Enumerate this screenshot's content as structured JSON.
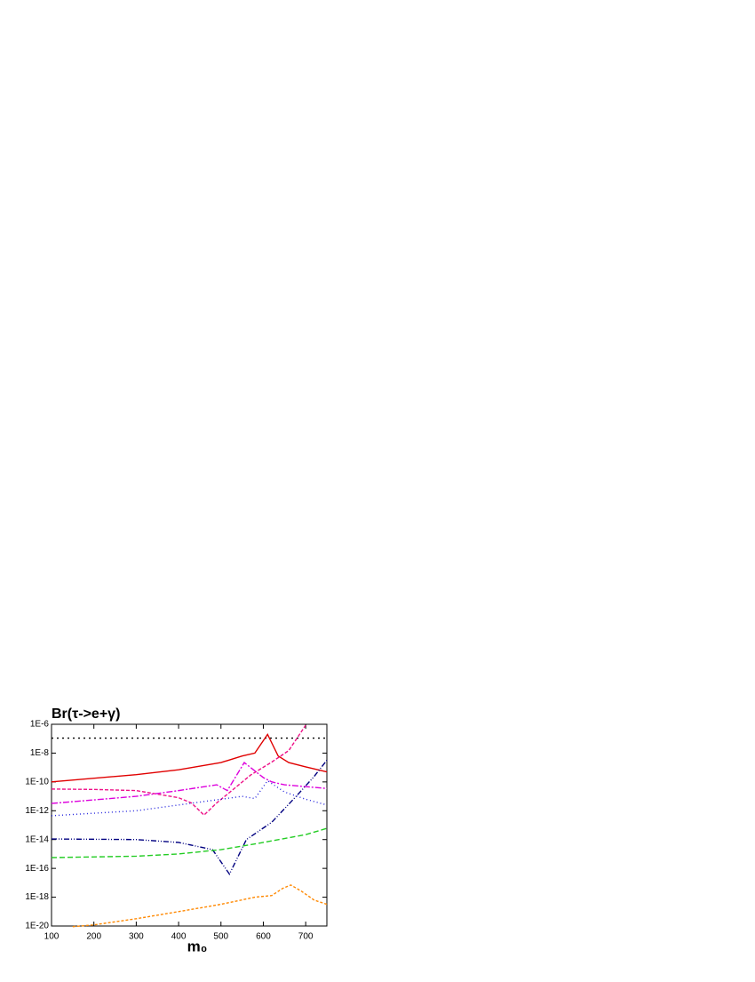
{
  "chart_data": {
    "type": "line",
    "title": "Br(τ->e+γ)",
    "x_label": "m₀",
    "log_y": true,
    "xlim": [
      100,
      750
    ],
    "xticks": [
      100,
      200,
      300,
      400,
      500,
      600,
      700
    ],
    "ylim": [
      1e-20,
      1e-06
    ],
    "yticks": [
      {
        "value": 1e-06,
        "label": "1E-6"
      },
      {
        "value": 1e-08,
        "label": "1E-8"
      },
      {
        "value": 1e-10,
        "label": "1E-10"
      },
      {
        "value": 1e-12,
        "label": "1E-12"
      },
      {
        "value": 1e-14,
        "label": "1E-14"
      },
      {
        "value": 1e-16,
        "label": "1E-16"
      },
      {
        "value": 1e-18,
        "label": "1E-18"
      },
      {
        "value": 1e-20,
        "label": "1E-20"
      }
    ],
    "series": [
      {
        "color": "#000000",
        "dash": "2,4",
        "x": [
          100,
          750
        ],
        "values": [
          1.1e-07,
          1.1e-07
        ]
      },
      {
        "color": "#e00000",
        "dash": "",
        "x": [
          100,
          300,
          400,
          500,
          550,
          580,
          610,
          635,
          660,
          700,
          750
        ],
        "values": [
          1e-10,
          3.2e-10,
          7e-10,
          2.2e-09,
          6.3e-09,
          1e-08,
          2e-07,
          6.3e-09,
          2.2e-09,
          1.1e-09,
          5e-10
        ]
      },
      {
        "color": "#ee1188",
        "dash": "4,2",
        "x": [
          100,
          200,
          300,
          400,
          430,
          460,
          490,
          530,
          570,
          620,
          660,
          700
        ],
        "values": [
          3.2e-11,
          3e-11,
          2.5e-11,
          8e-12,
          3.5e-12,
          5e-13,
          3.5e-12,
          3.2e-11,
          3e-10,
          2.4e-09,
          1.5e-08,
          8.7e-07
        ]
      },
      {
        "color": "#dd00dd",
        "dash": "7,2,2,2",
        "x": [
          100,
          300,
          400,
          490,
          515,
          555,
          600,
          620,
          650,
          750
        ],
        "values": [
          3.2e-12,
          1e-11,
          2.5e-11,
          6.3e-11,
          2.5e-11,
          2.2e-09,
          2e-10,
          1e-10,
          6.3e-11,
          3.5e-11
        ]
      },
      {
        "color": "#2222dd",
        "dash": "1,3",
        "x": [
          100,
          300,
          400,
          500,
          550,
          580,
          610,
          650,
          700,
          750
        ],
        "values": [
          4.5e-13,
          1e-12,
          2.5e-12,
          6.3e-12,
          1e-11,
          7e-12,
          1.2e-10,
          2e-11,
          6.3e-12,
          2.5e-12
        ]
      },
      {
        "color": "#000080",
        "dash": "6,2,1,2,1,2",
        "x": [
          100,
          300,
          400,
          480,
          520,
          560,
          620,
          680,
          720,
          750
        ],
        "values": [
          1.1e-14,
          1e-14,
          6.3e-15,
          2e-15,
          4e-17,
          1e-14,
          1.6e-13,
          1.2e-11,
          2.4e-10,
          3.2e-09
        ]
      },
      {
        "color": "#22cc22",
        "dash": "6,3",
        "x": [
          100,
          300,
          400,
          500,
          600,
          700,
          750
        ],
        "values": [
          5.6e-16,
          7e-16,
          1e-15,
          2e-15,
          6.3e-15,
          2.2e-14,
          6e-14
        ]
      },
      {
        "color": "#ff8800",
        "dash": "3,2",
        "x": [
          150,
          200,
          300,
          400,
          500,
          580,
          620,
          645,
          665,
          690,
          720,
          750
        ],
        "values": [
          9e-21,
          1.2e-20,
          3.2e-20,
          1e-19,
          3.2e-19,
          1e-18,
          1.3e-18,
          4e-18,
          7e-18,
          2.6e-18,
          6.3e-19,
          3.2e-19
        ]
      }
    ]
  }
}
